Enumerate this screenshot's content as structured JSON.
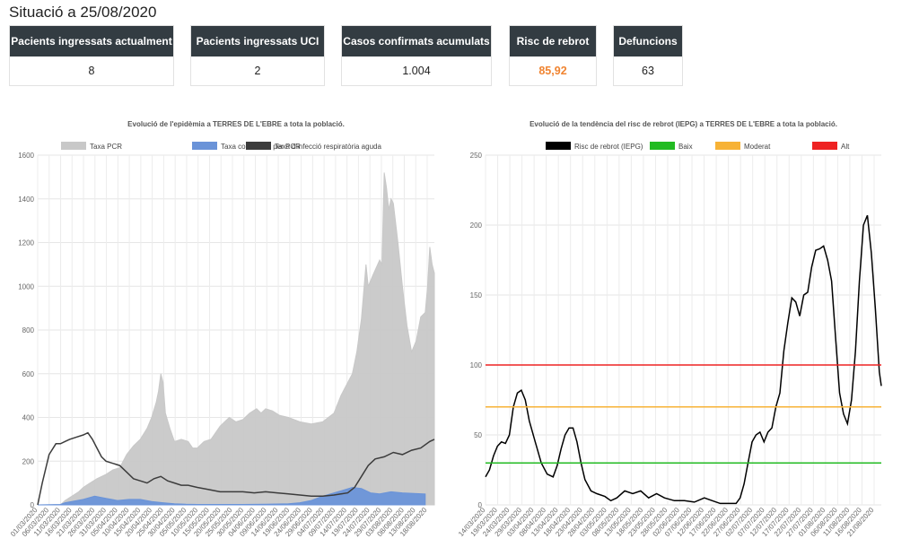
{
  "title": "Situació a 25/08/2020",
  "cards": [
    {
      "label": "Pacients ingressats actualment",
      "value": "8"
    },
    {
      "label": "Pacients ingressats UCI",
      "value": "2"
    },
    {
      "label": "Casos confirmats acumulats",
      "value": "1.004"
    },
    {
      "label": "Risc de rebrot",
      "value": "85,92"
    },
    {
      "label": "Defuncions",
      "value": "63"
    }
  ],
  "colors": {
    "accent": "#f08431",
    "card_header": "#333c42",
    "pcr_confirmed": "#6a93d8",
    "pcr_rate": "#c8c8c8",
    "respiratory": "#3c3c3c",
    "risk": "#000000",
    "low": "#22bb22",
    "moderate": "#f7b236",
    "high": "#ee2222"
  },
  "chart_data": [
    {
      "type": "area",
      "title": "Evolució de l'epidèmia a TERRES DE L'EBRE a tota la població.",
      "legend_position": "top",
      "grid": true,
      "ylim": [
        0,
        1600
      ],
      "yticks": [
        0,
        200,
        400,
        600,
        800,
        1000,
        1200,
        1400,
        1600
      ],
      "xticks": [
        "01/03/2020",
        "06/03/2020",
        "11/03/2020",
        "16/03/2020",
        "21/03/2020",
        "26/03/2020",
        "31/03/2020",
        "05/04/2020",
        "10/04/2020",
        "15/04/2020",
        "20/04/2020",
        "25/04/2020",
        "30/04/2020",
        "05/05/2020",
        "10/05/2020",
        "15/05/2020",
        "20/05/2020",
        "25/05/2020",
        "30/05/2020",
        "04/06/2020",
        "09/06/2020",
        "14/06/2020",
        "19/06/2020",
        "24/06/2020",
        "29/06/2020",
        "04/07/2020",
        "09/07/2020",
        "14/07/2020",
        "19/07/2020",
        "24/07/2020",
        "29/07/2020",
        "03/08/2020",
        "08/08/2020",
        "13/08/2020",
        "18/08/2020"
      ],
      "series": [
        {
          "name": "Taxa confirmats per PCR",
          "kind": "area",
          "points": [
            [
              0,
              0
            ],
            [
              10,
              2
            ],
            [
              12,
              10
            ],
            [
              20,
              25
            ],
            [
              25,
              40
            ],
            [
              30,
              30
            ],
            [
              35,
              20
            ],
            [
              40,
              25
            ],
            [
              45,
              25
            ],
            [
              50,
              15
            ],
            [
              55,
              10
            ],
            [
              60,
              5
            ],
            [
              65,
              3
            ],
            [
              70,
              2
            ],
            [
              80,
              2
            ],
            [
              90,
              2
            ],
            [
              100,
              3
            ],
            [
              110,
              5
            ],
            [
              115,
              10
            ],
            [
              120,
              20
            ],
            [
              125,
              40
            ],
            [
              130,
              55
            ],
            [
              135,
              70
            ],
            [
              138,
              80
            ],
            [
              142,
              75
            ],
            [
              146,
              55
            ],
            [
              150,
              50
            ],
            [
              155,
              60
            ],
            [
              160,
              55
            ],
            [
              170,
              50
            ]
          ]
        },
        {
          "name": "Taxa PCR",
          "kind": "area",
          "points": [
            [
              0,
              0
            ],
            [
              10,
              0
            ],
            [
              12,
              20
            ],
            [
              15,
              40
            ],
            [
              18,
              60
            ],
            [
              20,
              80
            ],
            [
              23,
              100
            ],
            [
              26,
              120
            ],
            [
              30,
              140
            ],
            [
              33,
              160
            ],
            [
              36,
              170
            ],
            [
              39,
              230
            ],
            [
              42,
              270
            ],
            [
              45,
              300
            ],
            [
              48,
              350
            ],
            [
              50,
              400
            ],
            [
              52,
              470
            ],
            [
              53,
              520
            ],
            [
              54,
              600
            ],
            [
              55,
              560
            ],
            [
              56,
              420
            ],
            [
              58,
              350
            ],
            [
              60,
              290
            ],
            [
              63,
              300
            ],
            [
              66,
              290
            ],
            [
              68,
              260
            ],
            [
              70,
              260
            ],
            [
              73,
              290
            ],
            [
              76,
              300
            ],
            [
              78,
              330
            ],
            [
              80,
              360
            ],
            [
              82,
              380
            ],
            [
              84,
              400
            ],
            [
              87,
              380
            ],
            [
              90,
              390
            ],
            [
              93,
              420
            ],
            [
              96,
              440
            ],
            [
              98,
              420
            ],
            [
              100,
              440
            ],
            [
              103,
              430
            ],
            [
              106,
              410
            ],
            [
              110,
              400
            ],
            [
              115,
              380
            ],
            [
              120,
              370
            ],
            [
              125,
              380
            ],
            [
              130,
              420
            ],
            [
              133,
              500
            ],
            [
              136,
              560
            ],
            [
              138,
              600
            ],
            [
              140,
              700
            ],
            [
              142,
              850
            ],
            [
              144,
              1100
            ],
            [
              145,
              1000
            ],
            [
              147,
              1050
            ],
            [
              150,
              1120
            ],
            [
              151,
              1100
            ],
            [
              152,
              1520
            ],
            [
              153,
              1450
            ],
            [
              154,
              1350
            ],
            [
              155,
              1400
            ],
            [
              156,
              1380
            ],
            [
              158,
              1200
            ],
            [
              160,
              1000
            ],
            [
              162,
              820
            ],
            [
              164,
              700
            ],
            [
              166,
              750
            ],
            [
              168,
              860
            ],
            [
              170,
              880
            ],
            [
              171,
              1000
            ],
            [
              172,
              1180
            ],
            [
              173,
              1100
            ],
            [
              174,
              1060
            ]
          ]
        },
        {
          "name": "Taxa d'infecció respiratòria aguda",
          "kind": "line",
          "points": [
            [
              0,
              0
            ],
            [
              2,
              100
            ],
            [
              5,
              230
            ],
            [
              8,
              280
            ],
            [
              10,
              280
            ],
            [
              12,
              290
            ],
            [
              14,
              300
            ],
            [
              17,
              310
            ],
            [
              20,
              320
            ],
            [
              22,
              330
            ],
            [
              24,
              300
            ],
            [
              26,
              260
            ],
            [
              28,
              220
            ],
            [
              30,
              200
            ],
            [
              33,
              190
            ],
            [
              36,
              180
            ],
            [
              39,
              150
            ],
            [
              42,
              120
            ],
            [
              45,
              110
            ],
            [
              48,
              100
            ],
            [
              51,
              120
            ],
            [
              54,
              130
            ],
            [
              57,
              110
            ],
            [
              60,
              100
            ],
            [
              63,
              90
            ],
            [
              66,
              90
            ],
            [
              70,
              80
            ],
            [
              75,
              70
            ],
            [
              80,
              60
            ],
            [
              85,
              60
            ],
            [
              90,
              60
            ],
            [
              95,
              55
            ],
            [
              100,
              60
            ],
            [
              105,
              55
            ],
            [
              110,
              50
            ],
            [
              115,
              45
            ],
            [
              120,
              40
            ],
            [
              125,
              40
            ],
            [
              130,
              45
            ],
            [
              133,
              50
            ],
            [
              136,
              55
            ],
            [
              139,
              80
            ],
            [
              142,
              130
            ],
            [
              145,
              180
            ],
            [
              148,
              210
            ],
            [
              152,
              220
            ],
            [
              156,
              240
            ],
            [
              160,
              230
            ],
            [
              164,
              250
            ],
            [
              168,
              260
            ],
            [
              172,
              290
            ],
            [
              174,
              300
            ]
          ]
        }
      ]
    },
    {
      "type": "line",
      "title": "Evolució de la tendència del risc de rebrot (IEPG) a TERRES DE L'EBRE a tota la població.",
      "legend_position": "top",
      "grid": true,
      "ylim": [
        0,
        250
      ],
      "yticks": [
        0,
        50,
        100,
        150,
        200,
        250
      ],
      "xticks": [
        "14/03/2020",
        "19/03/2020",
        "24/03/2020",
        "29/03/2020",
        "03/04/2020",
        "08/04/2020",
        "13/04/2020",
        "18/04/2020",
        "23/04/2020",
        "28/04/2020",
        "03/05/2020",
        "08/05/2020",
        "13/05/2020",
        "18/05/2020",
        "23/05/2020",
        "28/05/2020",
        "02/06/2020",
        "07/06/2020",
        "12/06/2020",
        "17/06/2020",
        "22/06/2020",
        "27/06/2020",
        "02/07/2020",
        "07/07/2020",
        "12/07/2020",
        "17/07/2020",
        "22/07/2020",
        "27/07/2020",
        "01/08/2020",
        "06/08/2020",
        "11/08/2020",
        "16/08/2020",
        "21/08/2020"
      ],
      "series": [
        {
          "name": "Risc de rebrot (IEPG)",
          "kind": "line",
          "points": [
            [
              0,
              20
            ],
            [
              2,
              25
            ],
            [
              4,
              35
            ],
            [
              6,
              42
            ],
            [
              8,
              45
            ],
            [
              10,
              44
            ],
            [
              12,
              50
            ],
            [
              14,
              70
            ],
            [
              16,
              80
            ],
            [
              18,
              82
            ],
            [
              20,
              75
            ],
            [
              22,
              60
            ],
            [
              25,
              45
            ],
            [
              28,
              30
            ],
            [
              31,
              22
            ],
            [
              34,
              20
            ],
            [
              36,
              28
            ],
            [
              38,
              40
            ],
            [
              40,
              50
            ],
            [
              42,
              55
            ],
            [
              44,
              55
            ],
            [
              46,
              45
            ],
            [
              48,
              30
            ],
            [
              50,
              18
            ],
            [
              53,
              10
            ],
            [
              56,
              8
            ],
            [
              60,
              6
            ],
            [
              63,
              3
            ],
            [
              66,
              5
            ],
            [
              70,
              10
            ],
            [
              74,
              8
            ],
            [
              78,
              10
            ],
            [
              82,
              5
            ],
            [
              86,
              8
            ],
            [
              90,
              5
            ],
            [
              95,
              3
            ],
            [
              100,
              3
            ],
            [
              105,
              2
            ],
            [
              110,
              5
            ],
            [
              114,
              3
            ],
            [
              118,
              1
            ],
            [
              122,
              1
            ],
            [
              126,
              1
            ],
            [
              128,
              5
            ],
            [
              130,
              15
            ],
            [
              132,
              30
            ],
            [
              134,
              45
            ],
            [
              136,
              50
            ],
            [
              138,
              52
            ],
            [
              140,
              45
            ],
            [
              142,
              52
            ],
            [
              144,
              55
            ],
            [
              146,
              70
            ],
            [
              148,
              80
            ],
            [
              150,
              110
            ],
            [
              152,
              130
            ],
            [
              154,
              148
            ],
            [
              156,
              145
            ],
            [
              158,
              135
            ],
            [
              160,
              150
            ],
            [
              162,
              152
            ],
            [
              164,
              170
            ],
            [
              166,
              182
            ],
            [
              168,
              183
            ],
            [
              170,
              185
            ],
            [
              172,
              175
            ],
            [
              174,
              160
            ],
            [
              176,
              120
            ],
            [
              178,
              80
            ],
            [
              180,
              65
            ],
            [
              182,
              58
            ],
            [
              184,
              75
            ],
            [
              186,
              110
            ],
            [
              188,
              160
            ],
            [
              190,
              200
            ],
            [
              192,
              207
            ],
            [
              194,
              180
            ],
            [
              196,
              140
            ],
            [
              198,
              95
            ],
            [
              199,
              85
            ]
          ]
        },
        {
          "name": "Baix",
          "kind": "hline",
          "value": 30
        },
        {
          "name": "Moderat",
          "kind": "hline",
          "value": 70
        },
        {
          "name": "Alt",
          "kind": "hline",
          "value": 100
        }
      ]
    }
  ]
}
